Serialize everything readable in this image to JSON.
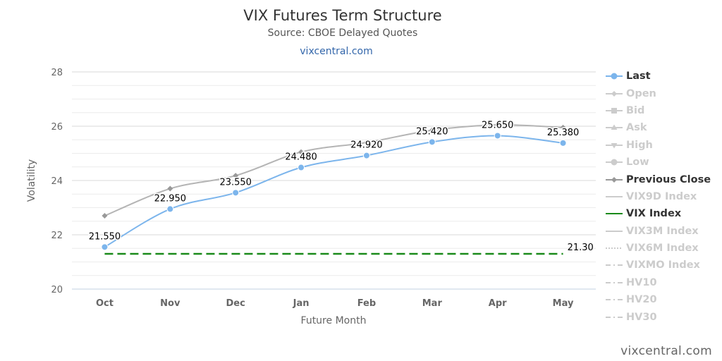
{
  "chart_data": {
    "type": "line",
    "title": "VIX Futures Term Structure",
    "subtitle": "Source: CBOE Delayed Quotes",
    "subtitle_link": "vixcentral.com",
    "xlabel": "Future Month",
    "ylabel": "Volatility",
    "categories": [
      "Oct",
      "Nov",
      "Dec",
      "Jan",
      "Feb",
      "Mar",
      "Apr",
      "May"
    ],
    "ylim": [
      20,
      28
    ],
    "yticks": [
      20,
      22,
      24,
      26,
      28
    ],
    "grid": true,
    "legend_position": "right",
    "series": [
      {
        "name": "Last",
        "values": [
          21.55,
          22.95,
          23.55,
          24.48,
          24.92,
          25.42,
          25.65,
          25.38
        ],
        "data_labels": [
          "21.550",
          "22.950",
          "23.550",
          "24.480",
          "24.920",
          "25.420",
          "25.650",
          "25.380"
        ],
        "color": "#7cb5ec",
        "marker": "circle"
      },
      {
        "name": "Previous Close",
        "values": [
          22.7,
          23.7,
          24.18,
          25.05,
          25.4,
          25.85,
          26.05,
          25.95
        ],
        "color": "#b4b4b4",
        "marker": "diamond"
      },
      {
        "name": "VIX Index",
        "values": [
          21.3,
          21.3,
          21.3,
          21.3,
          21.3,
          21.3,
          21.3,
          21.3
        ],
        "end_label": "21.30",
        "color": "#1a8a1a",
        "style": "dashed"
      }
    ]
  },
  "legend": {
    "items": [
      {
        "label": "Last",
        "active": true,
        "symbol": "line-circle",
        "color": "#7cb5ec"
      },
      {
        "label": "Open",
        "active": false,
        "symbol": "line-diamond",
        "color": "#cccccc"
      },
      {
        "label": "Bid",
        "active": false,
        "symbol": "line-square",
        "color": "#cccccc"
      },
      {
        "label": "Ask",
        "active": false,
        "symbol": "line-triangle",
        "color": "#cccccc"
      },
      {
        "label": "High",
        "active": false,
        "symbol": "line-triangle-down",
        "color": "#cccccc"
      },
      {
        "label": "Low",
        "active": false,
        "symbol": "line-circle",
        "color": "#cccccc"
      },
      {
        "label": "Previous Close",
        "active": true,
        "symbol": "line-diamond",
        "color": "#999999"
      },
      {
        "label": "VIX9D Index",
        "active": false,
        "symbol": "line",
        "color": "#cccccc"
      },
      {
        "label": "VIX Index",
        "active": true,
        "symbol": "line",
        "color": "#1a8a1a"
      },
      {
        "label": "VIX3M Index",
        "active": false,
        "symbol": "line",
        "color": "#cccccc"
      },
      {
        "label": "VIX6M Index",
        "active": false,
        "symbol": "dotted",
        "color": "#cccccc"
      },
      {
        "label": "VIXMO Index",
        "active": false,
        "symbol": "dash-dot",
        "color": "#cccccc"
      },
      {
        "label": "HV10",
        "active": false,
        "symbol": "dash-dot",
        "color": "#cccccc"
      },
      {
        "label": "HV20",
        "active": false,
        "symbol": "dash-dot",
        "color": "#cccccc"
      },
      {
        "label": "HV30",
        "active": false,
        "symbol": "dash-dot",
        "color": "#cccccc"
      }
    ]
  },
  "footer": {
    "credit": "vixcentral.com"
  }
}
